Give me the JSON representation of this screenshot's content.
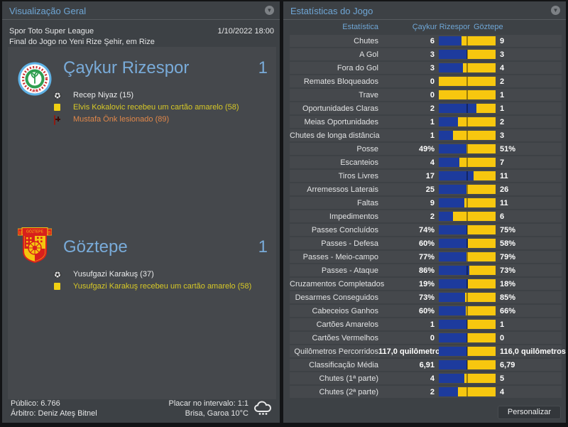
{
  "left_panel": {
    "title": "Visualização Geral",
    "competition": "Spor Toto Super League",
    "datetime": "1/10/2022 18:00",
    "venue_line": "Final do Jogo no Yeni Rize Şehir, em Rize",
    "home": {
      "name": "Çaykur Rizespor",
      "score": "1",
      "logo_colors": {
        "ring": "#5fb2e6",
        "band": "#ffffff",
        "inner": "#2e9e4f",
        "year": "1953"
      },
      "events": [
        {
          "type": "goal",
          "text": "Recep Niyaz (15)"
        },
        {
          "type": "yellow-card",
          "text": "Elvis Kokalovic recebeu um cartão amarelo (58)"
        },
        {
          "type": "injury",
          "text": "Mustafa Önk lesionado (89)"
        }
      ]
    },
    "away": {
      "name": "Göztepe",
      "score": "1",
      "logo_colors": {
        "primary": "#d8201c",
        "secondary": "#f5c40f",
        "banner_text": "GÖZTEPE",
        "year_left": "19",
        "year_right": "25"
      },
      "events": [
        {
          "type": "goal",
          "text": "Yusufgazi Karakuş (37)"
        },
        {
          "type": "yellow-card",
          "text": "Yusufgazi Karakuş recebeu um cartão amarelo (58)"
        }
      ]
    },
    "footer": {
      "attendance": "Público: 6.766",
      "referee": "Árbitro: Deniz Ateş Bitnel",
      "halftime": "Placar no intervalo: 1:1",
      "weather": "Brisa, Garoa 10°C"
    }
  },
  "right_panel": {
    "title": "Estatísticas do Jogo",
    "columns": {
      "stat": "Estatística",
      "home": "Çaykur Rizespor",
      "away": "Göztepe"
    },
    "personalize_label": "Personalizar"
  },
  "chart_data": {
    "type": "bar",
    "title": "Estatísticas do Jogo",
    "teams": [
      "Çaykur Rizespor",
      "Göztepe"
    ],
    "bar_colors": {
      "home": "#1d3b9d",
      "away": "#f7c70f"
    },
    "note": "each row is a proportional split bar, blue share = home/(home+away), center marker at 50%",
    "rows": [
      {
        "label": "Chutes",
        "home": 6,
        "away": 9,
        "home_display": "6",
        "away_display": "9"
      },
      {
        "label": "A Gol",
        "home": 3,
        "away": 3,
        "home_display": "3",
        "away_display": "3"
      },
      {
        "label": "Fora do Gol",
        "home": 3,
        "away": 4,
        "home_display": "3",
        "away_display": "4"
      },
      {
        "label": "Remates Bloqueados",
        "home": 0,
        "away": 2,
        "home_display": "0",
        "away_display": "2"
      },
      {
        "label": "Trave",
        "home": 0,
        "away": 1,
        "home_display": "0",
        "away_display": "1"
      },
      {
        "label": "Oportunidades Claras",
        "home": 2,
        "away": 1,
        "home_display": "2",
        "away_display": "1"
      },
      {
        "label": "Meias Oportunidades",
        "home": 1,
        "away": 2,
        "home_display": "1",
        "away_display": "2"
      },
      {
        "label": "Chutes de longa distância",
        "home": 1,
        "away": 3,
        "home_display": "1",
        "away_display": "3"
      },
      {
        "label": "Posse",
        "home": 49,
        "away": 51,
        "home_display": "49%",
        "away_display": "51%"
      },
      {
        "label": "Escanteios",
        "home": 4,
        "away": 7,
        "home_display": "4",
        "away_display": "7"
      },
      {
        "label": "Tiros Livres",
        "home": 17,
        "away": 11,
        "home_display": "17",
        "away_display": "11"
      },
      {
        "label": "Arremessos Laterais",
        "home": 25,
        "away": 26,
        "home_display": "25",
        "away_display": "26"
      },
      {
        "label": "Faltas",
        "home": 9,
        "away": 11,
        "home_display": "9",
        "away_display": "11"
      },
      {
        "label": "Impedimentos",
        "home": 2,
        "away": 6,
        "home_display": "2",
        "away_display": "6"
      },
      {
        "label": "Passes Concluídos",
        "home": 74,
        "away": 75,
        "home_display": "74%",
        "away_display": "75%"
      },
      {
        "label": "Passes - Defesa",
        "home": 60,
        "away": 58,
        "home_display": "60%",
        "away_display": "58%"
      },
      {
        "label": "Passes - Meio-campo",
        "home": 77,
        "away": 79,
        "home_display": "77%",
        "away_display": "79%"
      },
      {
        "label": "Passes - Ataque",
        "home": 86,
        "away": 73,
        "home_display": "86%",
        "away_display": "73%"
      },
      {
        "label": "Cruzamentos Completados",
        "home": 19,
        "away": 18,
        "home_display": "19%",
        "away_display": "18%"
      },
      {
        "label": "Desarmes Conseguidos",
        "home": 73,
        "away": 85,
        "home_display": "73%",
        "away_display": "85%"
      },
      {
        "label": "Cabeceios Ganhos",
        "home": 60,
        "away": 66,
        "home_display": "60%",
        "away_display": "66%"
      },
      {
        "label": "Cartões Amarelos",
        "home": 1,
        "away": 1,
        "home_display": "1",
        "away_display": "1"
      },
      {
        "label": "Cartões Vermelhos",
        "home": 0,
        "away": 0,
        "home_display": "0",
        "away_display": "0"
      },
      {
        "label": "Quilômetros Percorridos",
        "home": 117.0,
        "away": 116.0,
        "home_display": "117,0 quilômetros",
        "away_display": "116,0 quilômetros"
      },
      {
        "label": "Classificação Média",
        "home": 6.91,
        "away": 6.79,
        "home_display": "6,91",
        "away_display": "6,79"
      },
      {
        "label": "Chutes (1ª parte)",
        "home": 4,
        "away": 5,
        "home_display": "4",
        "away_display": "5"
      },
      {
        "label": "Chutes (2ª parte)",
        "home": 2,
        "away": 4,
        "home_display": "2",
        "away_display": "4"
      }
    ]
  }
}
